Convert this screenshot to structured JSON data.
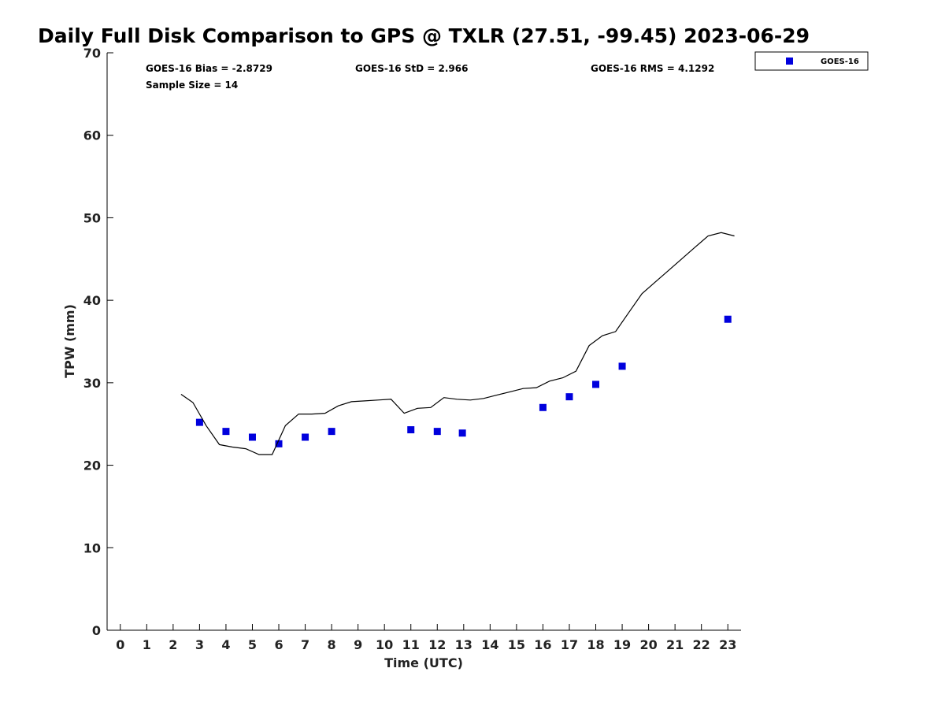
{
  "chart_data": {
    "type": "scatter",
    "title": "Daily Full Disk Comparison to GPS @ TXLR (27.51, -99.45) 2023-06-29",
    "xlabel": "Time (UTC)",
    "ylabel": "TPW (mm)",
    "xlim": [
      -0.5,
      23.5
    ],
    "ylim": [
      0,
      70
    ],
    "x_ticks": [
      0,
      1,
      2,
      3,
      4,
      5,
      6,
      7,
      8,
      9,
      10,
      11,
      12,
      13,
      14,
      15,
      16,
      17,
      18,
      19,
      20,
      21,
      22,
      23
    ],
    "y_ticks": [
      0,
      10,
      20,
      30,
      40,
      50,
      60,
      70
    ],
    "grid": false,
    "legend_position": "top-right",
    "stats": {
      "bias": "GOES-16 Bias = -2.8729",
      "std": "GOES-16 StD = 2.966",
      "rms": "GOES-16 RMS = 4.1292",
      "sample_size": "Sample Size = 14"
    },
    "series": [
      {
        "name": "GOES-16",
        "type": "scatter",
        "color": "#0000dd",
        "x": [
          3.0,
          4.0,
          5.0,
          6.0,
          7.0,
          8.0,
          11.0,
          12.0,
          12.95,
          16.0,
          17.0,
          18.0,
          19.0,
          23.0
        ],
        "y": [
          25.2,
          24.1,
          23.4,
          22.6,
          23.4,
          24.1,
          24.3,
          24.1,
          23.9,
          27.0,
          28.3,
          29.8,
          32.0,
          37.7
        ]
      },
      {
        "type": "line",
        "color": "#000000",
        "x": [
          2.3,
          2.75,
          3.25,
          3.75,
          4.25,
          4.75,
          5.25,
          5.75,
          6.25,
          6.75,
          7.25,
          7.75,
          8.25,
          8.75,
          9.25,
          9.75,
          10.25,
          10.75,
          11.25,
          11.75,
          12.25,
          12.75,
          13.25,
          13.75,
          14.25,
          14.75,
          15.25,
          15.75,
          16.25,
          16.75,
          17.25,
          17.75,
          18.25,
          18.75,
          19.25,
          19.75,
          20.25,
          20.75,
          21.25,
          21.75,
          22.25,
          22.75,
          23.25
        ],
        "y": [
          28.6,
          27.6,
          24.8,
          22.5,
          22.2,
          22.0,
          21.3,
          21.3,
          24.8,
          26.2,
          26.2,
          26.3,
          27.2,
          27.7,
          27.8,
          27.9,
          28.0,
          26.3,
          26.9,
          27.0,
          28.2,
          28.0,
          27.9,
          28.1,
          28.5,
          28.9,
          29.3,
          29.4,
          30.2,
          30.6,
          31.4,
          34.5,
          35.7,
          36.2,
          38.5,
          40.8,
          42.2,
          43.6,
          45.0,
          46.4,
          47.8,
          48.2,
          47.8
        ]
      }
    ]
  }
}
